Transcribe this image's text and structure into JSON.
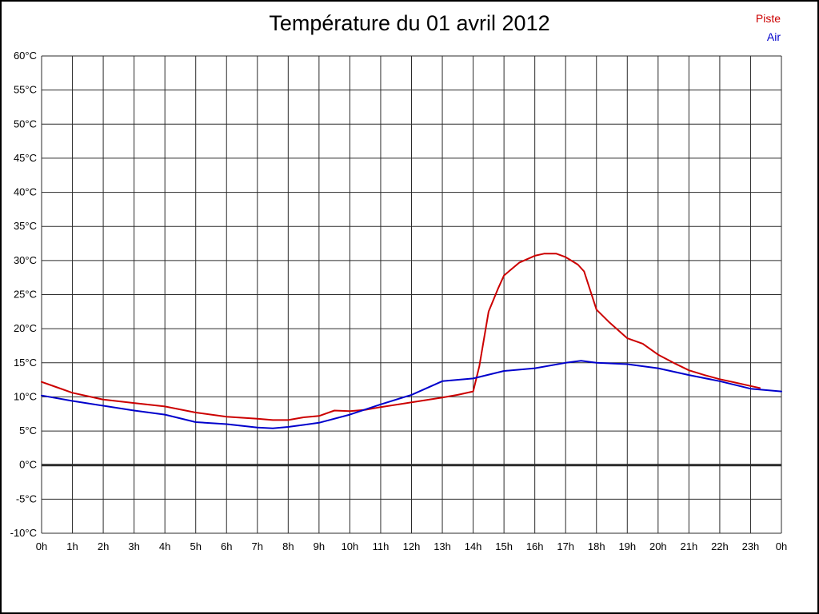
{
  "title": "Température du 01 avril 2012",
  "legend": {
    "position": "top-right",
    "items": [
      {
        "label": "Piste",
        "color": "#cc0000"
      },
      {
        "label": "Air",
        "color": "#0000cc"
      }
    ]
  },
  "chart_data": {
    "type": "line",
    "title": "Température du 01 avril 2012",
    "xlabel": "",
    "ylabel": "",
    "xlim": [
      0,
      24
    ],
    "ylim": [
      -10,
      60
    ],
    "grid": true,
    "grid_color": "#2b2b2b",
    "zero_line_value": 0,
    "zero_line_width": 3,
    "legend_position": "top-right",
    "x_ticks": [
      {
        "value": 0,
        "label": "0h"
      },
      {
        "value": 1,
        "label": "1h"
      },
      {
        "value": 2,
        "label": "2h"
      },
      {
        "value": 3,
        "label": "3h"
      },
      {
        "value": 4,
        "label": "4h"
      },
      {
        "value": 5,
        "label": "5h"
      },
      {
        "value": 6,
        "label": "6h"
      },
      {
        "value": 7,
        "label": "7h"
      },
      {
        "value": 8,
        "label": "8h"
      },
      {
        "value": 9,
        "label": "9h"
      },
      {
        "value": 10,
        "label": "10h"
      },
      {
        "value": 11,
        "label": "11h"
      },
      {
        "value": 12,
        "label": "12h"
      },
      {
        "value": 13,
        "label": "13h"
      },
      {
        "value": 14,
        "label": "14h"
      },
      {
        "value": 15,
        "label": "15h"
      },
      {
        "value": 16,
        "label": "16h"
      },
      {
        "value": 17,
        "label": "17h"
      },
      {
        "value": 18,
        "label": "18h"
      },
      {
        "value": 19,
        "label": "19h"
      },
      {
        "value": 20,
        "label": "20h"
      },
      {
        "value": 21,
        "label": "21h"
      },
      {
        "value": 22,
        "label": "22h"
      },
      {
        "value": 23,
        "label": "23h"
      },
      {
        "value": 24,
        "label": "0h"
      }
    ],
    "y_ticks": [
      {
        "value": 60,
        "label": "60°C"
      },
      {
        "value": 55,
        "label": "55°C"
      },
      {
        "value": 50,
        "label": "50°C"
      },
      {
        "value": 45,
        "label": "45°C"
      },
      {
        "value": 40,
        "label": "40°C"
      },
      {
        "value": 35,
        "label": "35°C"
      },
      {
        "value": 30,
        "label": "30°C"
      },
      {
        "value": 25,
        "label": "25°C"
      },
      {
        "value": 20,
        "label": "20°C"
      },
      {
        "value": 15,
        "label": "15°C"
      },
      {
        "value": 10,
        "label": "10°C"
      },
      {
        "value": 5,
        "label": "5°C"
      },
      {
        "value": 0,
        "label": "0°C"
      },
      {
        "value": -5,
        "label": "-5°C"
      },
      {
        "value": -10,
        "label": "-10°C"
      }
    ],
    "series": [
      {
        "name": "Piste",
        "color": "#cc0000",
        "points": [
          [
            0,
            12.2
          ],
          [
            0.5,
            11.4
          ],
          [
            1,
            10.6
          ],
          [
            2,
            9.6
          ],
          [
            3,
            9.1
          ],
          [
            4,
            8.6
          ],
          [
            5,
            7.7
          ],
          [
            6,
            7.1
          ],
          [
            7,
            6.8
          ],
          [
            7.5,
            6.6
          ],
          [
            8,
            6.6
          ],
          [
            8.5,
            7.0
          ],
          [
            9,
            7.2
          ],
          [
            9.5,
            8.0
          ],
          [
            10,
            7.9
          ],
          [
            10.5,
            8.1
          ],
          [
            11,
            8.5
          ],
          [
            12,
            9.2
          ],
          [
            13,
            9.9
          ],
          [
            13.5,
            10.3
          ],
          [
            14,
            10.8
          ],
          [
            14.2,
            14.5
          ],
          [
            14.5,
            22.5
          ],
          [
            14.8,
            25.8
          ],
          [
            15,
            27.8
          ],
          [
            15.5,
            29.7
          ],
          [
            16,
            30.7
          ],
          [
            16.3,
            31.0
          ],
          [
            16.7,
            31.0
          ],
          [
            17,
            30.5
          ],
          [
            17.4,
            29.4
          ],
          [
            17.6,
            28.4
          ],
          [
            18,
            22.8
          ],
          [
            18.4,
            21.0
          ],
          [
            19,
            18.6
          ],
          [
            19.5,
            17.8
          ],
          [
            20,
            16.2
          ],
          [
            20.5,
            15.0
          ],
          [
            21,
            13.9
          ],
          [
            21.5,
            13.2
          ],
          [
            22,
            12.6
          ],
          [
            22.5,
            12.1
          ],
          [
            23,
            11.6
          ],
          [
            23.3,
            11.3
          ]
        ]
      },
      {
        "name": "Air",
        "color": "#0000cc",
        "points": [
          [
            0,
            10.2
          ],
          [
            1,
            9.4
          ],
          [
            2,
            8.7
          ],
          [
            3,
            8.0
          ],
          [
            4,
            7.4
          ],
          [
            5,
            6.3
          ],
          [
            6,
            6.0
          ],
          [
            7,
            5.5
          ],
          [
            7.5,
            5.4
          ],
          [
            8,
            5.6
          ],
          [
            9,
            6.2
          ],
          [
            10,
            7.4
          ],
          [
            11,
            8.9
          ],
          [
            12,
            10.3
          ],
          [
            13,
            12.3
          ],
          [
            14,
            12.7
          ],
          [
            15,
            13.8
          ],
          [
            16,
            14.2
          ],
          [
            17,
            15.0
          ],
          [
            17.5,
            15.3
          ],
          [
            18,
            15.0
          ],
          [
            19,
            14.8
          ],
          [
            20,
            14.2
          ],
          [
            21,
            13.2
          ],
          [
            22,
            12.3
          ],
          [
            23,
            11.2
          ],
          [
            24,
            10.8
          ]
        ]
      }
    ]
  }
}
